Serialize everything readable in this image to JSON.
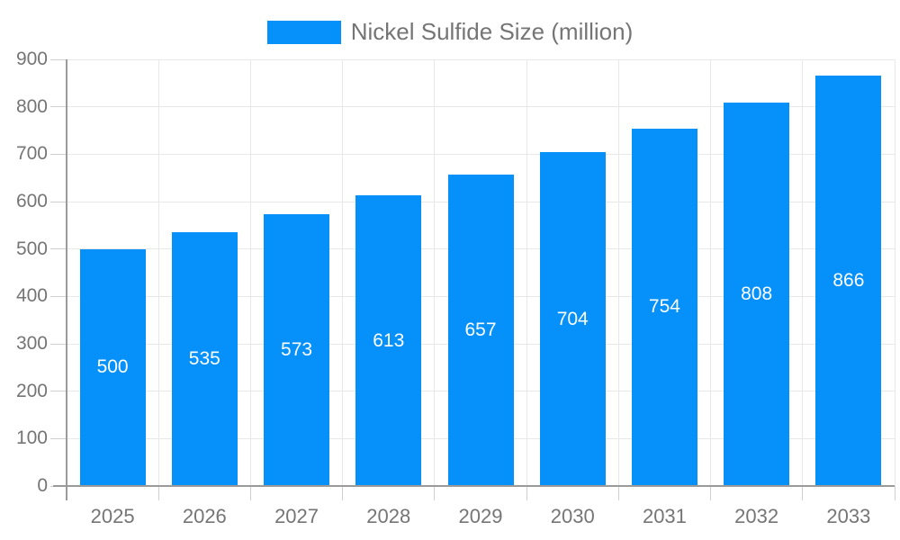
{
  "legend": {
    "label": "Nickel Sulfide Size (million)"
  },
  "chart_data": {
    "type": "bar",
    "title": "",
    "xlabel": "",
    "ylabel": "",
    "categories": [
      "2025",
      "2026",
      "2027",
      "2028",
      "2029",
      "2030",
      "2031",
      "2032",
      "2033"
    ],
    "series": [
      {
        "name": "Nickel Sulfide Size (million)",
        "values": [
          500,
          535,
          573,
          613,
          657,
          704,
          754,
          808,
          866
        ]
      }
    ],
    "value_labels_shown": true,
    "value_label_position": "center-of-bar",
    "ylim": [
      0,
      900
    ],
    "yticks": [
      0,
      100,
      200,
      300,
      400,
      500,
      600,
      700,
      800,
      900
    ],
    "grid": true,
    "legend_position": "top-center",
    "colors": {
      "bar": "#0690FA",
      "value_label": "#FFFFFF",
      "axis_label": "#757575",
      "legend_text": "#757575",
      "gridline": "#E8E8E8",
      "axis_line": "#9A9A9A",
      "tick": "#CFCFCF",
      "background": "#FFFFFF"
    }
  }
}
